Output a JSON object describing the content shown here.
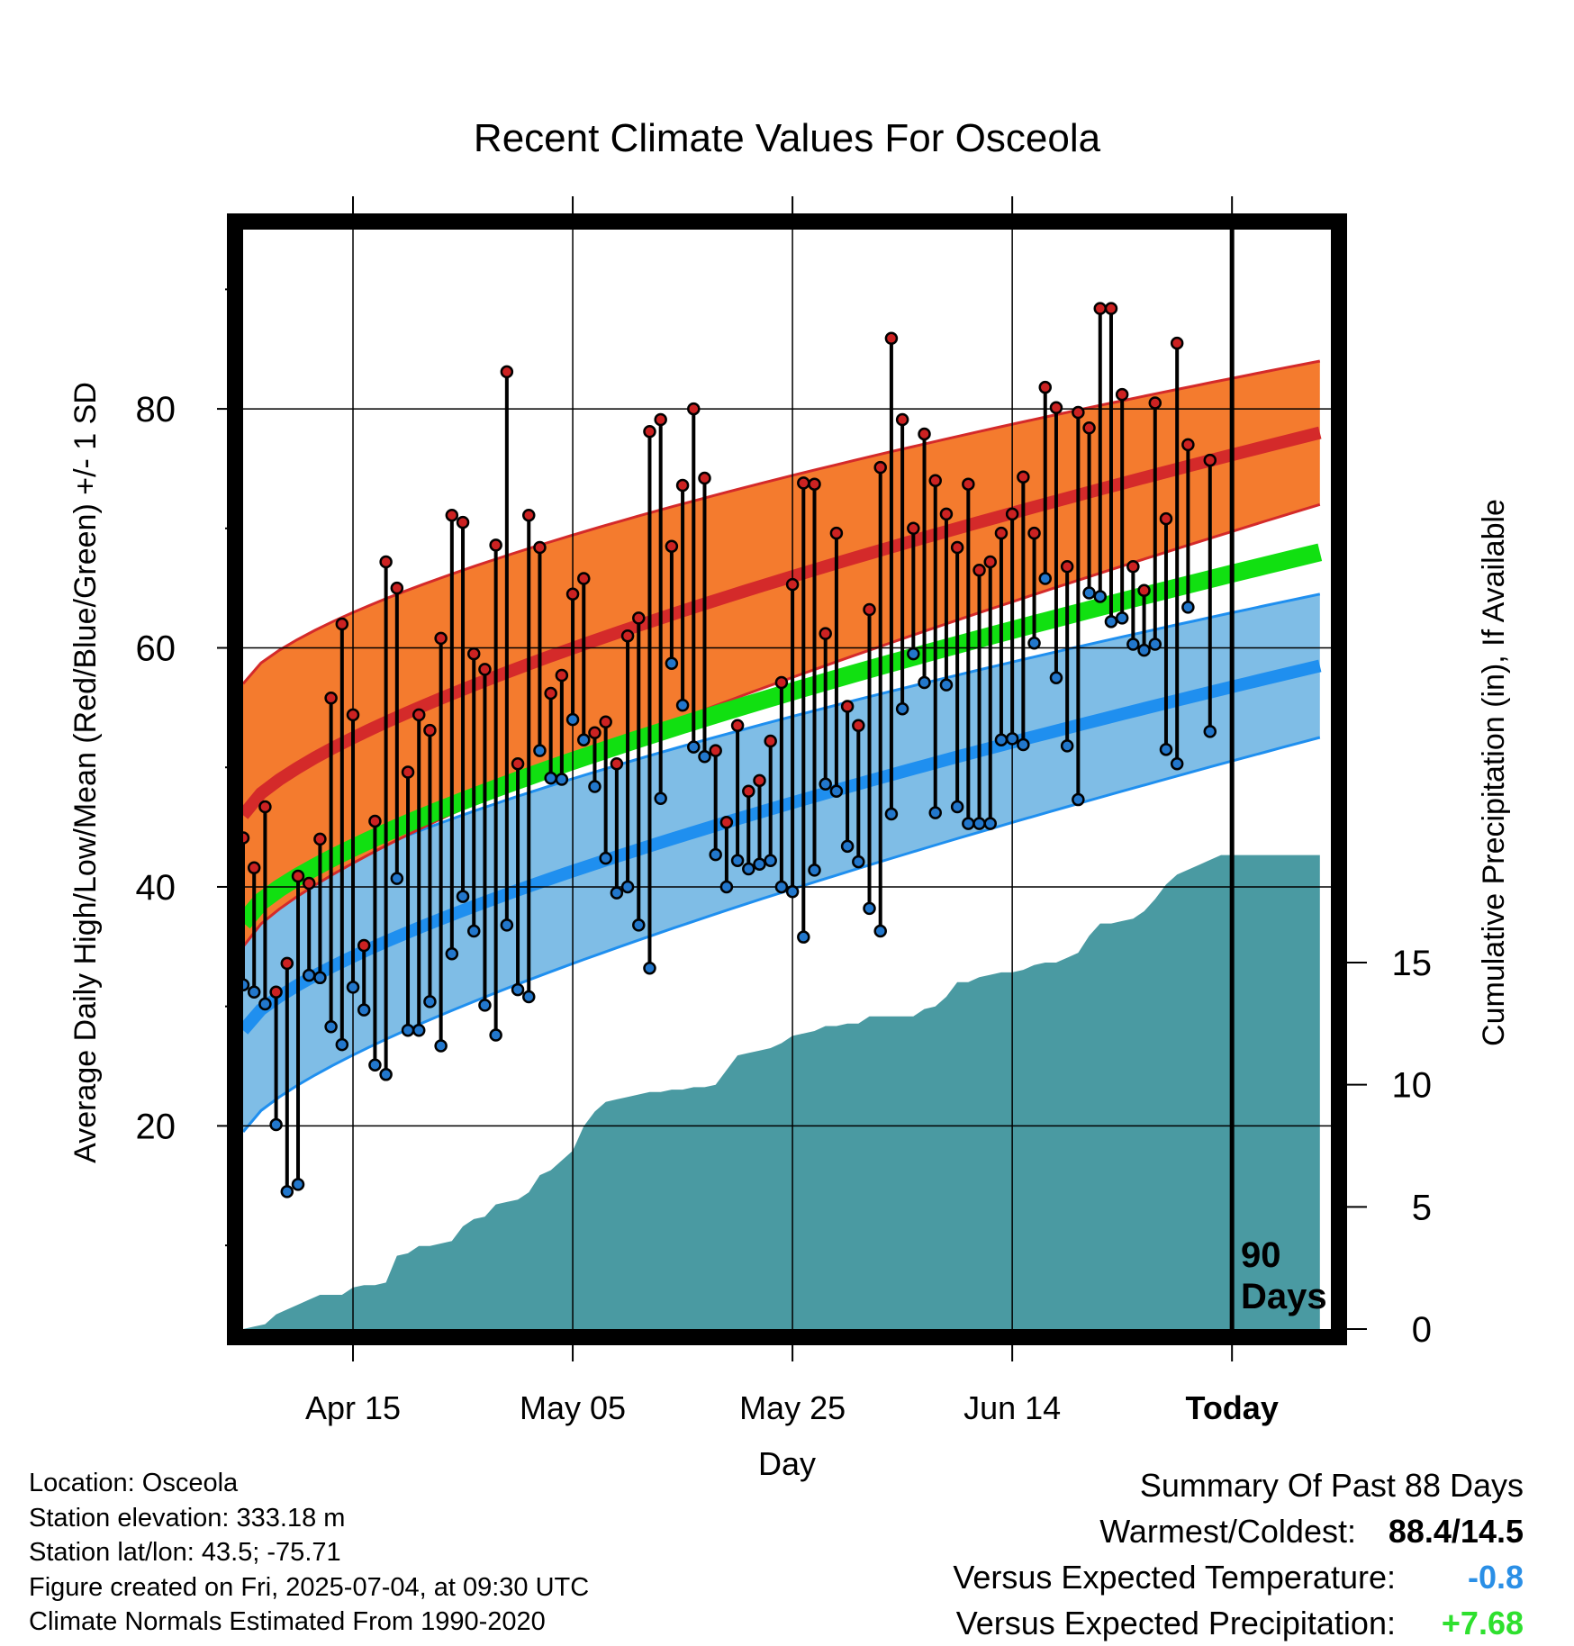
{
  "chart_data": {
    "type": "line",
    "title": "Recent Climate Values For Osceola",
    "xlabel": "Day",
    "ylabel_left": "Average Daily High/Low/Mean (Red/Blue/Green) +/- 1 SD",
    "ylabel_right": "Cumulative Precipitation (in), If Available",
    "x_ticks": [
      "Apr 15",
      "May 05",
      "May 25",
      "Jun 14",
      "Today"
    ],
    "x_tick_days": [
      10,
      30,
      50,
      70,
      90
    ],
    "x_range_days": [
      0,
      99
    ],
    "ylim_left": [
      3,
      95
    ],
    "yticks_left": [
      20,
      40,
      60,
      80
    ],
    "ylim_right": [
      0,
      45
    ],
    "yticks_right": [
      0,
      5,
      10,
      15
    ],
    "today_label": "90\nDays",
    "normals": {
      "high": {
        "start": 46.0,
        "end": 78.0,
        "sd_start": 11.0,
        "sd_end": 6.0
      },
      "mean": {
        "start": 37.0,
        "end": 68.0
      },
      "low": {
        "start": 28.0,
        "end": 58.5,
        "sd_start": 8.5,
        "sd_end": 6.0
      }
    },
    "series": [
      {
        "name": "High",
        "color": "#cc2222",
        "values": [
          44.1,
          41.6,
          46.7,
          31.2,
          33.6,
          40.9,
          40.3,
          44.0,
          55.8,
          62.0,
          54.4,
          35.1,
          45.5,
          67.2,
          65.0,
          49.6,
          54.4,
          53.1,
          60.8,
          71.1,
          70.5,
          59.5,
          58.2,
          68.6,
          83.1,
          50.3,
          71.1,
          68.4,
          56.2,
          57.7,
          64.5,
          65.8,
          52.9,
          53.8,
          50.3,
          61.0,
          62.5,
          78.1,
          79.1,
          68.5,
          73.6,
          80.0,
          74.2,
          51.4,
          45.4,
          53.5,
          48.0,
          48.9,
          52.2,
          57.1,
          65.3,
          73.8,
          73.7,
          61.2,
          69.6,
          55.1,
          53.5,
          63.2,
          75.1,
          85.9,
          79.1,
          70.0,
          77.9,
          74.0,
          71.2,
          68.4,
          73.7,
          66.5,
          67.2,
          69.6,
          71.2,
          74.3,
          69.6,
          81.8,
          80.1,
          66.8,
          79.7,
          78.4,
          88.4,
          88.4,
          81.2,
          66.8,
          64.8,
          80.5,
          70.8,
          85.5,
          77.0,
          null,
          75.7
        ]
      },
      {
        "name": "Low",
        "color": "#2277cc",
        "values": [
          31.8,
          31.2,
          30.2,
          20.1,
          14.5,
          15.1,
          32.6,
          32.4,
          28.3,
          26.8,
          31.6,
          29.7,
          25.1,
          24.3,
          40.7,
          28.0,
          28.0,
          30.4,
          26.7,
          34.4,
          39.2,
          36.3,
          30.1,
          27.6,
          36.8,
          31.4,
          30.8,
          51.4,
          49.1,
          49.0,
          54.0,
          52.3,
          48.4,
          42.4,
          39.5,
          40.0,
          36.8,
          33.2,
          47.4,
          58.7,
          55.2,
          51.7,
          50.9,
          42.7,
          40.0,
          42.2,
          41.5,
          41.9,
          42.2,
          40.0,
          39.6,
          35.8,
          41.4,
          48.6,
          48.0,
          43.4,
          42.1,
          38.2,
          36.3,
          46.1,
          54.9,
          59.5,
          57.1,
          46.2,
          56.9,
          46.7,
          45.3,
          45.3,
          45.3,
          52.3,
          52.4,
          51.9,
          60.4,
          65.8,
          57.5,
          51.8,
          47.3,
          64.6,
          64.3,
          62.2,
          62.5,
          60.3,
          59.8,
          60.3,
          51.5,
          50.3,
          63.4,
          null,
          53.0
        ]
      },
      {
        "name": "Cumulative Precipitation",
        "color": "#4a9aa2",
        "values": [
          0.0,
          0.1,
          0.2,
          0.6,
          0.8,
          1.0,
          1.2,
          1.4,
          1.4,
          1.4,
          1.7,
          1.8,
          1.8,
          1.9,
          3.0,
          3.1,
          3.4,
          3.4,
          3.5,
          3.6,
          4.2,
          4.5,
          4.6,
          5.1,
          5.2,
          5.3,
          5.6,
          6.3,
          6.5,
          6.9,
          7.3,
          8.3,
          8.9,
          9.3,
          9.4,
          9.5,
          9.6,
          9.7,
          9.7,
          9.8,
          9.8,
          9.9,
          9.9,
          10.0,
          10.6,
          11.2,
          11.3,
          11.4,
          11.5,
          11.7,
          12.0,
          12.1,
          12.2,
          12.4,
          12.4,
          12.5,
          12.5,
          12.8,
          12.8,
          12.8,
          12.8,
          12.8,
          13.1,
          13.2,
          13.6,
          14.2,
          14.2,
          14.4,
          14.5,
          14.6,
          14.6,
          14.7,
          14.9,
          15.0,
          15.0,
          15.2,
          15.4,
          16.1,
          16.6,
          16.6,
          16.7,
          16.8,
          17.1,
          17.6,
          18.2,
          18.6,
          18.8,
          19.0,
          19.2,
          19.4,
          19.4,
          19.4,
          19.4,
          19.4
        ]
      }
    ]
  },
  "info": {
    "location": "Location: Osceola",
    "elevation": "Station elevation: 333.18 m",
    "latlon": "Station lat/lon: 43.5; -75.71",
    "created": "Figure created on Fri, 2025-07-04, at 09:30 UTC",
    "normals": "Climate Normals Estimated From 1990-2020"
  },
  "summary": {
    "heading": "Summary Of Past 88 Days",
    "warm_cold_label": "Warmest/Coldest:",
    "warm_cold_value": "88.4/14.5",
    "temp_label": "Versus Expected Temperature:",
    "temp_value": "-0.8",
    "temp_color": "#2a8fe6",
    "precip_label": "Versus Expected Precipitation:",
    "precip_value": "+7.68",
    "precip_color": "#2ee02e"
  }
}
